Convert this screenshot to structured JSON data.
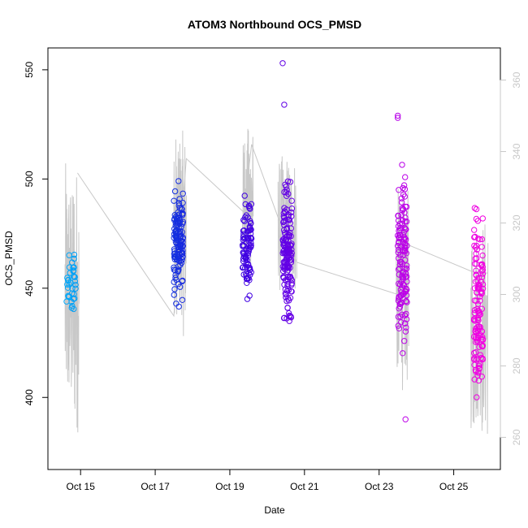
{
  "chart_data": {
    "type": "scatter",
    "title": "ATOM3 Northbound OCS_PMSD",
    "xlabel": "Date",
    "ylabel": "OCS_PMSD",
    "x_axis_type": "date",
    "xlim": [
      "2016-10-14T03:00",
      "2016-10-26T06:00"
    ],
    "ylim": [
      367,
      560
    ],
    "y2lim": [
      251,
      369
    ],
    "x_ticks": [
      {
        "date": "2016-10-15",
        "label": "Oct 15"
      },
      {
        "date": "2016-10-17",
        "label": "Oct 17"
      },
      {
        "date": "2016-10-19",
        "label": "Oct 19"
      },
      {
        "date": "2016-10-21",
        "label": "Oct 21"
      },
      {
        "date": "2016-10-23",
        "label": "Oct 23"
      },
      {
        "date": "2016-10-25",
        "label": "Oct 25"
      }
    ],
    "y_ticks": [
      400,
      450,
      500,
      550
    ],
    "y2_ticks": [
      260,
      280,
      300,
      320,
      340,
      360
    ],
    "grid": false,
    "legend": "none",
    "point_color_gradient": [
      "#00bfff",
      "#0050e0",
      "#3000e0",
      "#8000e8",
      "#c000e8",
      "#ff00e0"
    ],
    "line_color": "#c8c8c8",
    "right_axis_color": "#c8c8c8",
    "point_clusters": [
      {
        "center": "2016-10-14T18:00",
        "spread_hours": 3,
        "y_min": 432,
        "y_max": 473,
        "n": 36
      },
      {
        "center": "2016-10-17T15:00",
        "spread_hours": 3,
        "y_min": 436,
        "y_max": 506,
        "n": 130
      },
      {
        "center": "2016-10-19T11:00",
        "spread_hours": 3,
        "y_min": 441,
        "y_max": 499,
        "n": 90
      },
      {
        "center": "2016-10-20T13:00",
        "spread_hours": 3,
        "y_min": 425,
        "y_max": 508,
        "n": 150
      },
      {
        "center": "2016-10-23T15:00",
        "spread_hours": 3,
        "y_min": 405,
        "y_max": 514,
        "n": 130
      },
      {
        "center": "2016-10-25T16:00",
        "spread_hours": 3,
        "y_min": 374,
        "y_max": 503,
        "n": 130
      }
    ],
    "point_outliers": [
      {
        "x": "2016-10-20T10:00",
        "y": 553
      },
      {
        "x": "2016-10-20T11:00",
        "y": 534
      },
      {
        "x": "2016-10-23T12:00",
        "y": 529
      },
      {
        "x": "2016-10-23T12:00",
        "y": 528
      },
      {
        "x": "2016-10-23T17:00",
        "y": 390
      }
    ],
    "secondary_series": {
      "axis": "right",
      "trend": [
        {
          "x": "2016-10-14T22:00",
          "y": 334
        },
        {
          "x": "2016-10-17T12:00",
          "y": 294
        },
        {
          "x": "2016-10-17T20:00",
          "y": 338
        },
        {
          "x": "2016-10-19T09:00",
          "y": 323
        },
        {
          "x": "2016-10-19T14:00",
          "y": 342
        },
        {
          "x": "2016-10-20T10:00",
          "y": 318
        },
        {
          "x": "2016-10-20T19:00",
          "y": 309
        },
        {
          "x": "2016-10-23T12:00",
          "y": 300
        },
        {
          "x": "2016-10-23T18:00",
          "y": 314
        },
        {
          "x": "2016-10-25T14:00",
          "y": 306
        },
        {
          "x": "2016-10-25T22:00",
          "y": 306
        }
      ],
      "bursts": [
        {
          "x_start": "2016-10-14T14:00",
          "x_end": "2016-10-14T23:00",
          "y_min": 261,
          "y_max": 337
        },
        {
          "x_start": "2016-10-17T12:00",
          "x_end": "2016-10-17T20:00",
          "y_min": 288,
          "y_max": 346
        },
        {
          "x_start": "2016-10-19T08:00",
          "x_end": "2016-10-19T15:00",
          "y_min": 305,
          "y_max": 347
        },
        {
          "x_start": "2016-10-20T07:00",
          "x_end": "2016-10-20T19:00",
          "y_min": 300,
          "y_max": 339
        },
        {
          "x_start": "2016-10-23T11:00",
          "x_end": "2016-10-23T19:00",
          "y_min": 273,
          "y_max": 330
        },
        {
          "x_start": "2016-10-25T11:00",
          "x_end": "2016-10-25T22:00",
          "y_min": 259,
          "y_max": 322
        }
      ]
    }
  }
}
